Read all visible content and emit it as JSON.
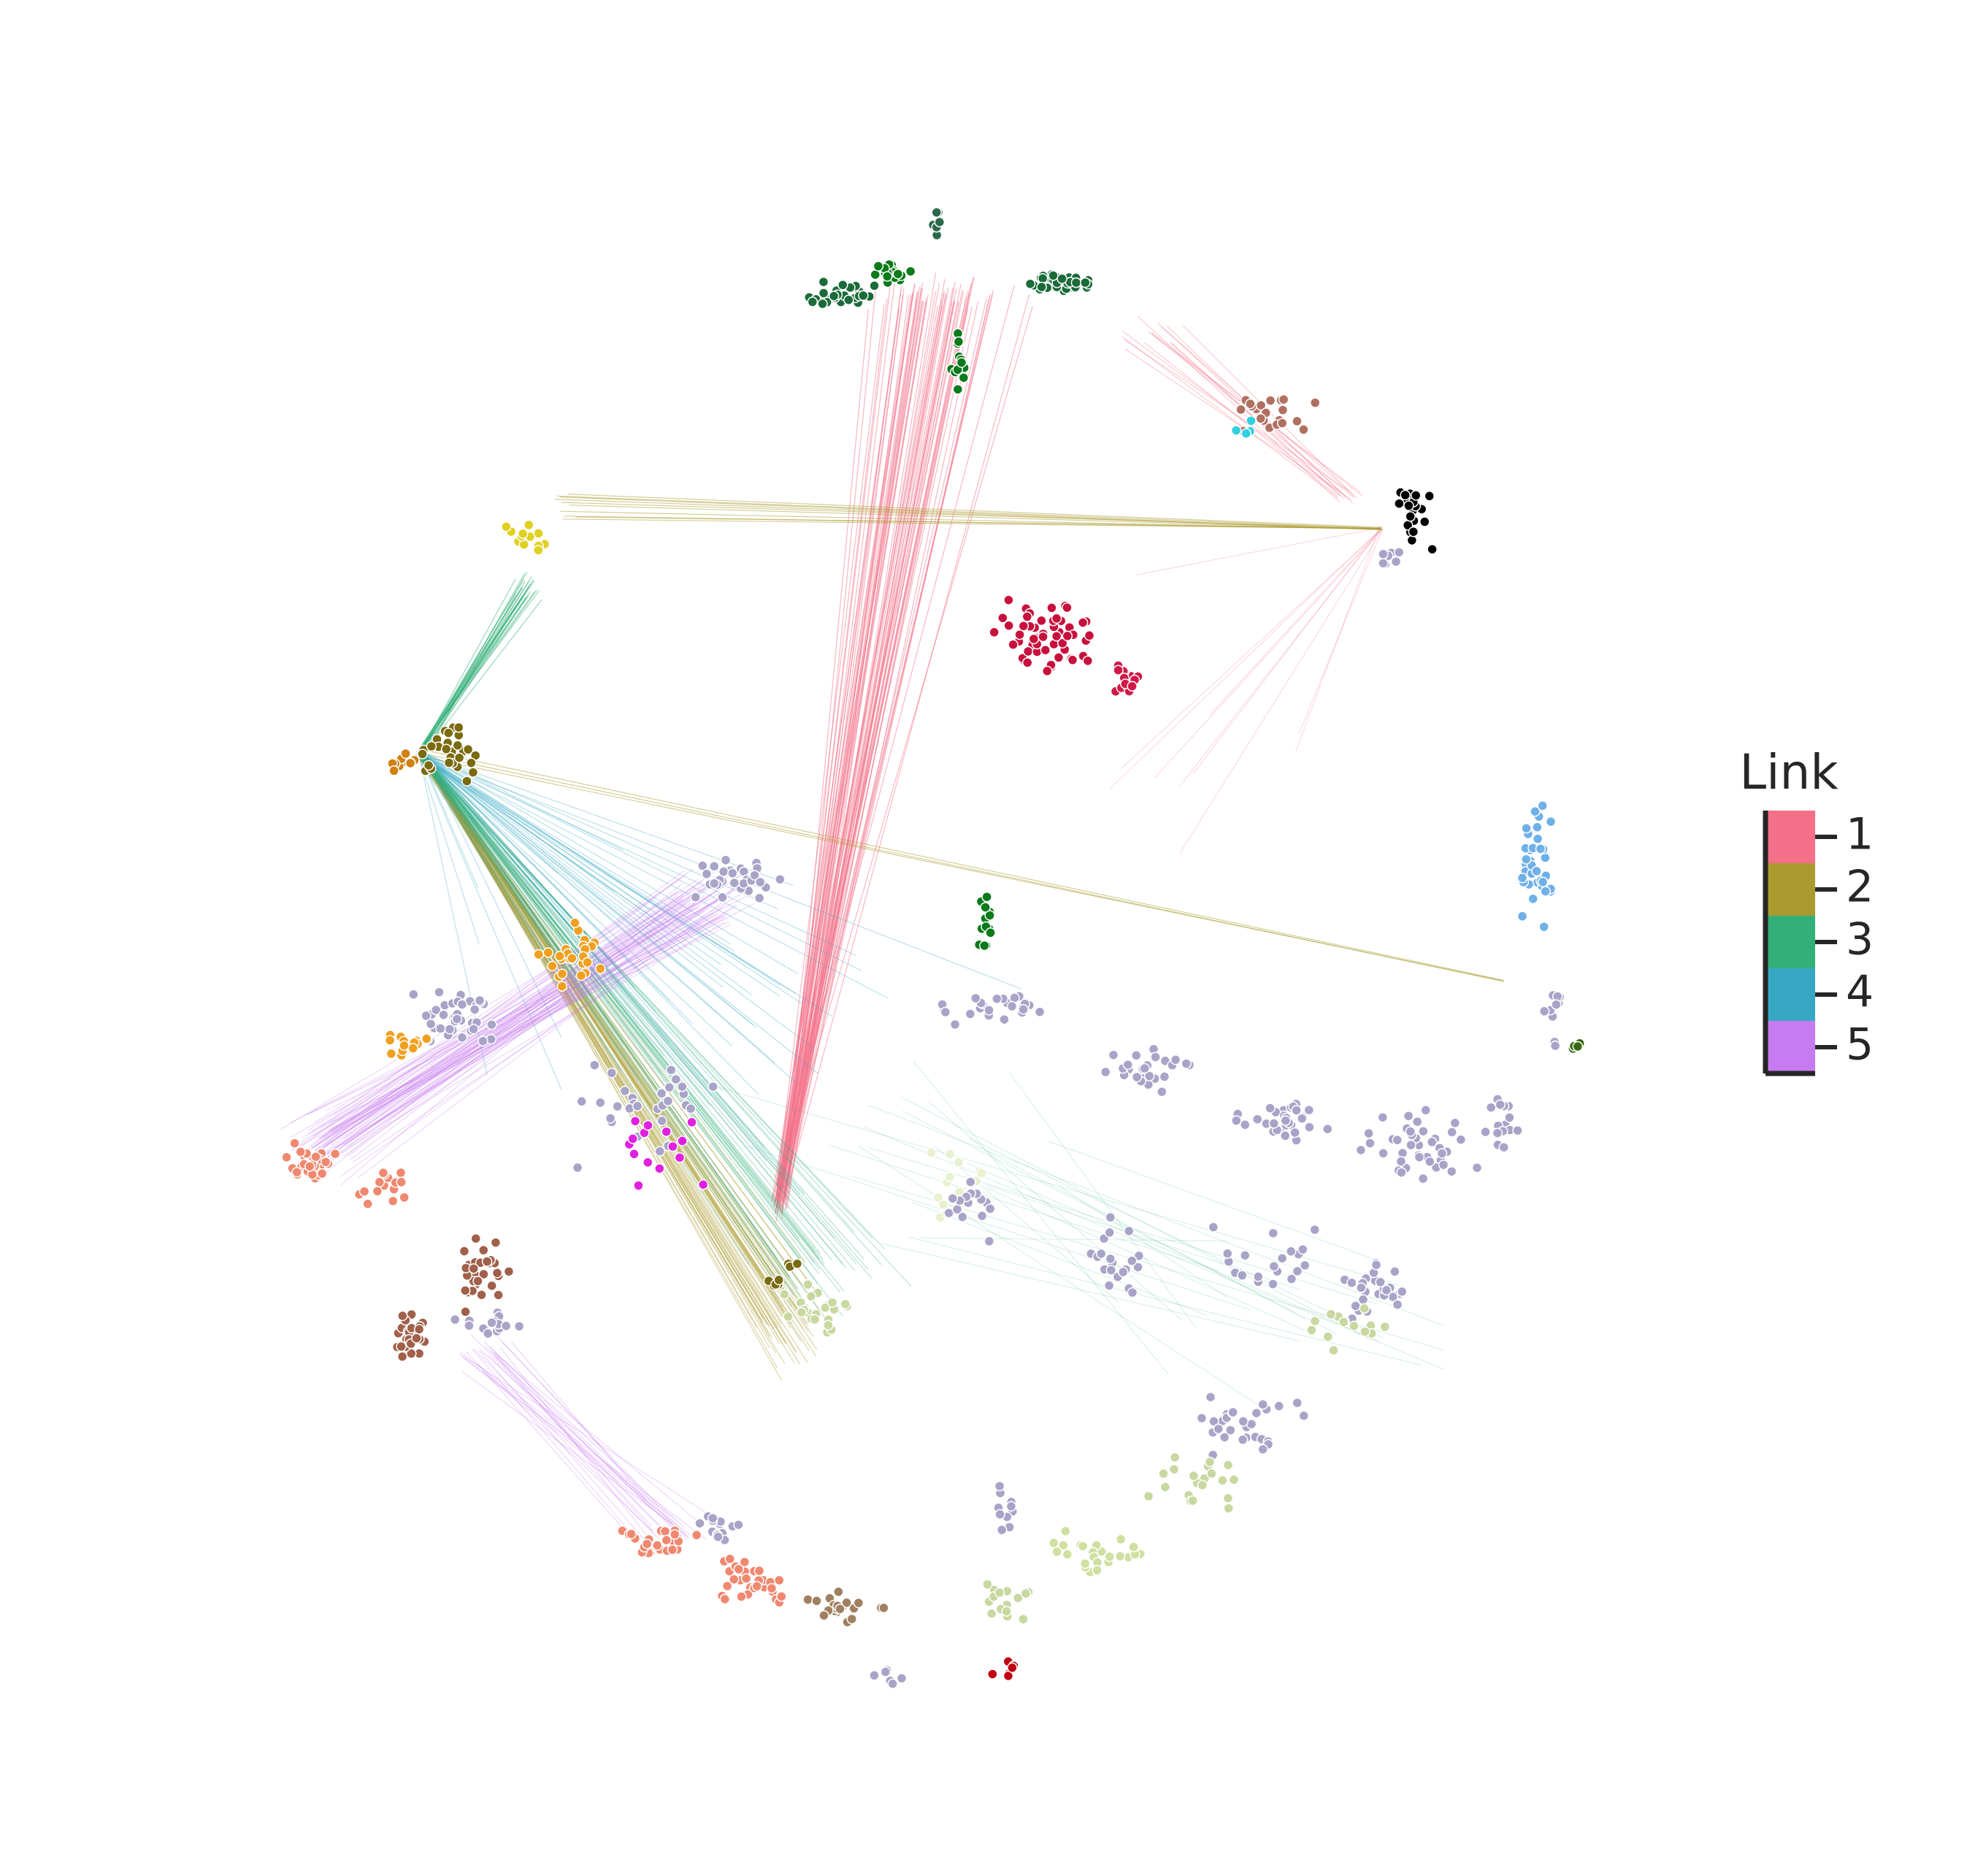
{
  "chart_data": {
    "type": "network",
    "legend": {
      "title": "Link",
      "ticks": [
        1,
        2,
        3,
        4,
        5
      ],
      "colors": [
        "#f47088",
        "#ab9b2f",
        "#33b07a",
        "#37a8c4",
        "#c77bf0"
      ]
    }
  }
}
